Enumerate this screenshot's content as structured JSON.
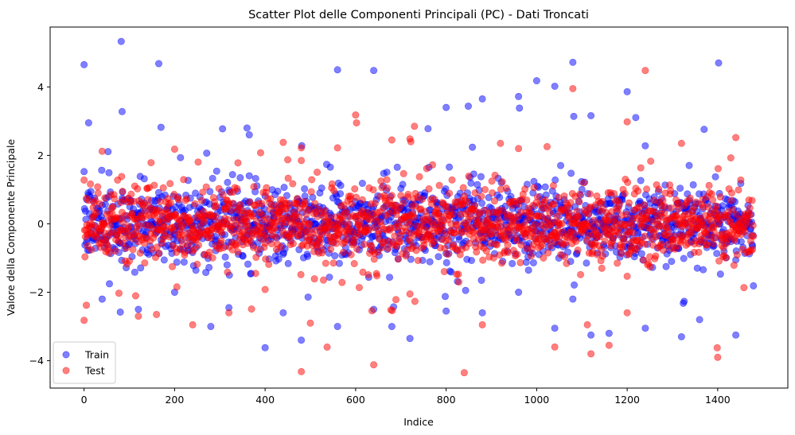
{
  "chart_data": {
    "type": "scatter",
    "title": "Scatter Plot delle Componenti Principali (PC) - Dati Troncati",
    "xlabel": "Indice",
    "ylabel": "Valore della Componente Principale",
    "xlim": [
      -75,
      1555
    ],
    "ylim": [
      -4.8,
      5.75
    ],
    "xticks": [
      0,
      200,
      400,
      600,
      800,
      1000,
      1200,
      1400
    ],
    "yticks": [
      -4,
      -2,
      0,
      2,
      4
    ],
    "xtick_labels": [
      "0",
      "200",
      "400",
      "600",
      "800",
      "1000",
      "1200",
      "1400"
    ],
    "ytick_labels": [
      "−4",
      "−2",
      "0",
      "2",
      "4"
    ],
    "legend_position": "lower-left",
    "grid": false,
    "series": [
      {
        "name": "Train",
        "color": "#0000ff",
        "alpha": 0.5,
        "n_points": 1480,
        "outliers": [
          [
            0,
            4.65
          ],
          [
            82,
            5.33
          ],
          [
            10,
            2.95
          ],
          [
            84,
            3.28
          ],
          [
            165,
            4.68
          ],
          [
            170,
            2.82
          ],
          [
            360,
            2.8
          ],
          [
            365,
            2.6
          ],
          [
            560,
            4.5
          ],
          [
            640,
            4.48
          ],
          [
            760,
            2.78
          ],
          [
            800,
            3.4
          ],
          [
            880,
            3.65
          ],
          [
            960,
            3.72
          ],
          [
            962,
            3.38
          ],
          [
            1000,
            4.18
          ],
          [
            1040,
            4.02
          ],
          [
            1080,
            4.72
          ],
          [
            1082,
            3.14
          ],
          [
            1120,
            3.16
          ],
          [
            1200,
            3.86
          ],
          [
            1240,
            2.28
          ],
          [
            1370,
            2.76
          ],
          [
            1402,
            4.7
          ],
          [
            40,
            -2.2
          ],
          [
            80,
            -2.58
          ],
          [
            120,
            -2.5
          ],
          [
            280,
            -3.0
          ],
          [
            320,
            -2.45
          ],
          [
            400,
            -3.62
          ],
          [
            440,
            -2.6
          ],
          [
            480,
            -3.4
          ],
          [
            560,
            -3.0
          ],
          [
            640,
            -2.5
          ],
          [
            680,
            -3.0
          ],
          [
            720,
            -3.35
          ],
          [
            800,
            -2.55
          ],
          [
            880,
            -2.6
          ],
          [
            1040,
            -3.05
          ],
          [
            1120,
            -3.25
          ],
          [
            1160,
            -3.2
          ],
          [
            1240,
            -3.05
          ],
          [
            1320,
            -3.3
          ],
          [
            1360,
            -2.8
          ],
          [
            1440,
            -3.25
          ],
          [
            1080,
            -2.2
          ],
          [
            960,
            -2.0
          ],
          [
            200,
            -2.0
          ]
        ]
      },
      {
        "name": "Test",
        "color": "#ff0000",
        "alpha": 0.5,
        "n_points": 1480,
        "outliers": [
          [
            0,
            -2.82
          ],
          [
            5,
            -2.38
          ],
          [
            40,
            2.12
          ],
          [
            200,
            2.18
          ],
          [
            340,
            1.78
          ],
          [
            440,
            2.38
          ],
          [
            480,
            2.22
          ],
          [
            560,
            2.22
          ],
          [
            600,
            3.18
          ],
          [
            602,
            2.95
          ],
          [
            680,
            2.45
          ],
          [
            720,
            2.48
          ],
          [
            722,
            2.4
          ],
          [
            730,
            2.85
          ],
          [
            920,
            2.35
          ],
          [
            960,
            2.2
          ],
          [
            1080,
            3.95
          ],
          [
            1200,
            2.98
          ],
          [
            1240,
            4.48
          ],
          [
            1320,
            2.35
          ],
          [
            1440,
            2.52
          ],
          [
            160,
            -2.65
          ],
          [
            240,
            -2.95
          ],
          [
            400,
            -1.92
          ],
          [
            480,
            -4.32
          ],
          [
            640,
            -4.12
          ],
          [
            840,
            -4.35
          ],
          [
            880,
            -2.95
          ],
          [
            1040,
            -3.6
          ],
          [
            1120,
            -3.8
          ],
          [
            1160,
            -3.55
          ],
          [
            1200,
            -2.6
          ],
          [
            1400,
            -3.9
          ],
          [
            720,
            -2.05
          ],
          [
            320,
            -2.6
          ],
          [
            120,
            -2.7
          ]
        ]
      }
    ]
  }
}
